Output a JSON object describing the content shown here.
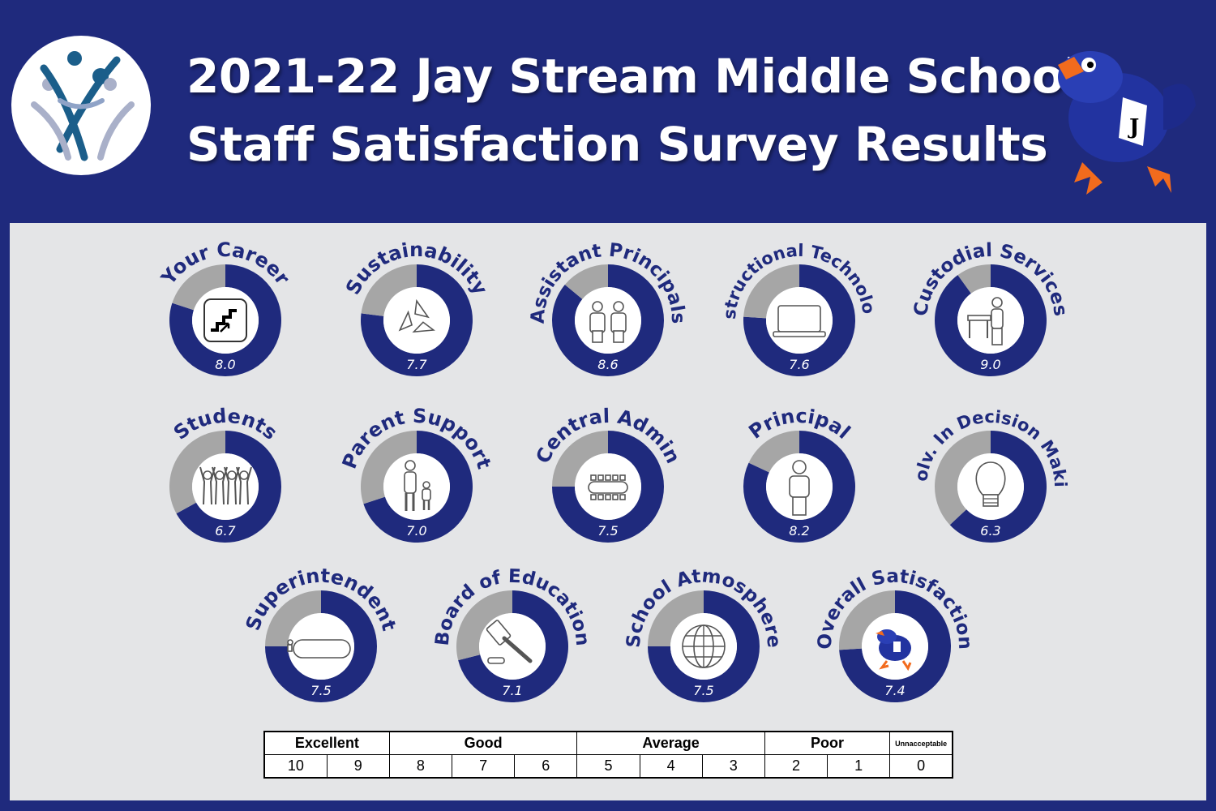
{
  "header": {
    "title_line1": "2021-22 Jay Stream Middle School",
    "title_line2": "Staff Satisfaction Survey Results"
  },
  "icons": {
    "logo": "figures-logo-icon",
    "mascot": "blue-jay-mascot-icon"
  },
  "colors": {
    "background": "#1f2a7d",
    "panel": "#e4e5e7",
    "score_arc": "#1f2a7d",
    "remainder_arc": "#a6a6a6",
    "title_text": "#ffffff"
  },
  "chart_data": {
    "type": "donut",
    "scale_max": 10,
    "items": [
      {
        "name": "Your Career",
        "value": 8.0,
        "label": "8.0",
        "icon": "stairs-icon"
      },
      {
        "name": "Sustainability",
        "value": 7.7,
        "label": "7.7",
        "icon": "recycle-icon"
      },
      {
        "name": "Assistant Principals",
        "value": 8.6,
        "label": "8.6",
        "icon": "two-people-icon"
      },
      {
        "name": "Instructional Technology",
        "value": 7.6,
        "label": "7.6",
        "icon": "laptop-icon"
      },
      {
        "name": "Custodial Services",
        "value": 9.0,
        "label": "9.0",
        "icon": "custodian-icon"
      },
      {
        "name": "Students",
        "value": 6.7,
        "label": "6.7",
        "icon": "students-cheering-icon"
      },
      {
        "name": "Parent Support",
        "value": 7.0,
        "label": "7.0",
        "icon": "parent-child-icon"
      },
      {
        "name": "Central Admin",
        "value": 7.5,
        "label": "7.5",
        "icon": "conference-table-icon"
      },
      {
        "name": "Principal",
        "value": 8.2,
        "label": "8.2",
        "icon": "person-icon"
      },
      {
        "name": "Involv. In Decision Making",
        "value": 6.3,
        "label": "6.3",
        "icon": "lightbulb-icon"
      },
      {
        "name": "Superintendent",
        "value": 7.5,
        "label": "7.5",
        "icon": "meeting-table-icon"
      },
      {
        "name": "Board of Education",
        "value": 7.1,
        "label": "7.1",
        "icon": "gavel-icon"
      },
      {
        "name": "School Atmosphere",
        "value": 7.5,
        "label": "7.5",
        "icon": "globe-icon"
      },
      {
        "name": "Overall Satisfaction",
        "value": 7.4,
        "label": "7.4",
        "icon": "blue-jay-mascot-icon"
      }
    ]
  },
  "scale": {
    "grades": [
      {
        "label": "Excellent",
        "span": 2
      },
      {
        "label": "Good",
        "span": 3
      },
      {
        "label": "Average",
        "span": 3
      },
      {
        "label": "Poor",
        "span": 2
      },
      {
        "label": "Unnacceptable",
        "span": 1
      }
    ],
    "numbers": [
      "10",
      "9",
      "8",
      "7",
      "6",
      "5",
      "4",
      "3",
      "2",
      "1",
      "0"
    ]
  }
}
